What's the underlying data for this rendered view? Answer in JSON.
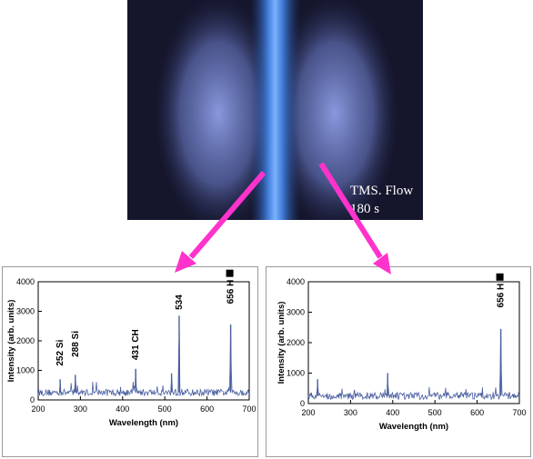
{
  "photo": {
    "caption_line1": "TMS. Flow",
    "caption_line2": "180 s"
  },
  "colors": {
    "arrow": "#ff33cc",
    "spectrum_line": "#4a5fa0",
    "plasma_core": "#4f8fe0",
    "plasma_glow": "#6f7fc8",
    "background_photo": "#1a1a30"
  },
  "chart_data": [
    {
      "type": "line",
      "xlabel": "Wavelength (nm)",
      "ylabel": "Intensity (arb. units)",
      "xlim": [
        200,
        700
      ],
      "ylim": [
        0,
        4000
      ],
      "xticks": [
        "200",
        "300",
        "400",
        "500",
        "600",
        "700"
      ],
      "yticks": [
        "0",
        "1000",
        "2000",
        "3000",
        "4000"
      ],
      "baseline": 250,
      "peaks": [
        {
          "x": 252,
          "y": 700
        },
        {
          "x": 288,
          "y": 850
        },
        {
          "x": 431,
          "y": 1050
        },
        {
          "x": 516,
          "y": 900
        },
        {
          "x": 534,
          "y": 2850
        },
        {
          "x": 656,
          "y": 2550
        }
      ],
      "annotations": [
        {
          "text": "252 Si",
          "x": 252,
          "y": 1150
        },
        {
          "text": "288 Si",
          "x": 288,
          "y": 1450
        },
        {
          "text": "431 CH",
          "x": 431,
          "y": 1350
        },
        {
          "text": "534",
          "x": 534,
          "y": 3050
        },
        {
          "text": "656 H",
          "x": 656,
          "y": 3250
        }
      ]
    },
    {
      "type": "line",
      "xlabel": "Wavelength (nm)",
      "ylabel": "Intensity (arb. units)",
      "xlim": [
        200,
        700
      ],
      "ylim": [
        0,
        4000
      ],
      "xticks": [
        "200",
        "300",
        "400",
        "500",
        "600",
        "700"
      ],
      "yticks": [
        "0",
        "1000",
        "2000",
        "3000",
        "4000"
      ],
      "baseline": 250,
      "peaks": [
        {
          "x": 222,
          "y": 800
        },
        {
          "x": 388,
          "y": 1000
        },
        {
          "x": 656,
          "y": 2450
        }
      ],
      "annotations": [
        {
          "text": "656 H",
          "x": 656,
          "y": 3150
        }
      ]
    }
  ]
}
